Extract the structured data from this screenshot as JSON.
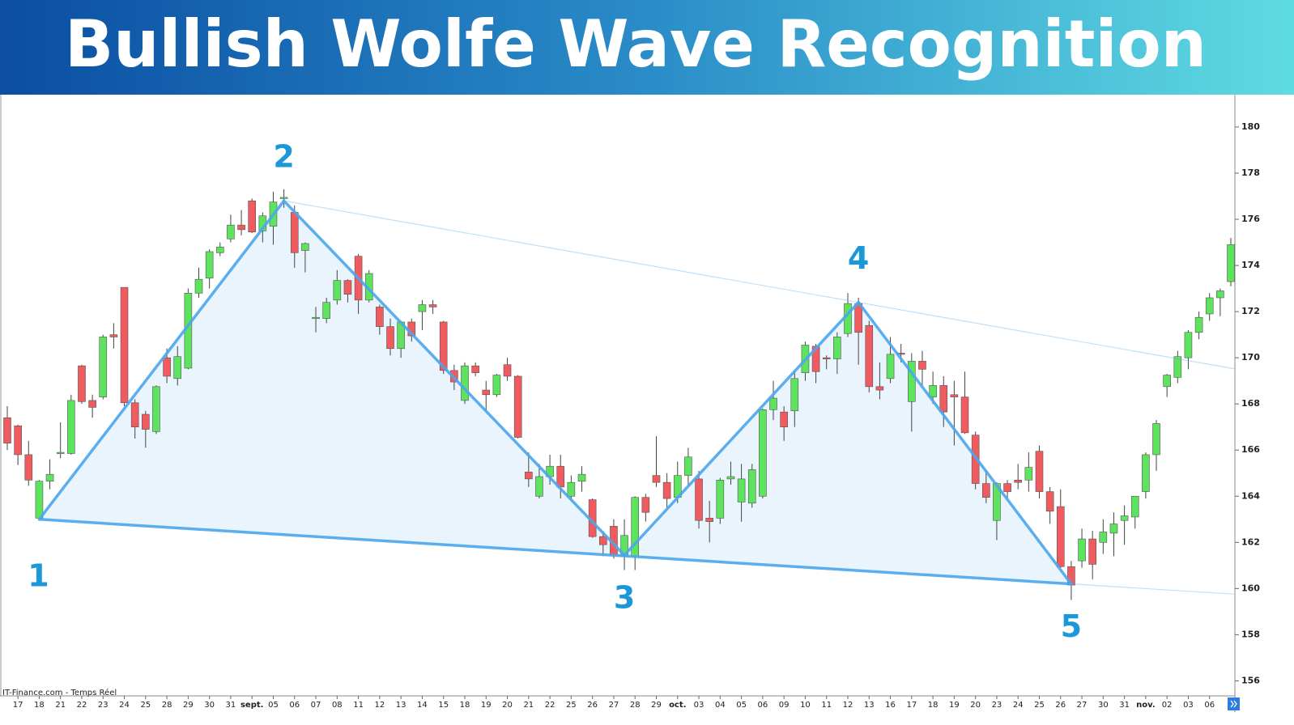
{
  "chart_data": {
    "type": "candlestick",
    "title": "Bullish Wolfe Wave Recognition",
    "source_label": "IT-Finance.com - Temps Réel",
    "categories": [
      null,
      "17",
      null,
      "18",
      null,
      "21",
      null,
      "22",
      null,
      "23",
      null,
      "24",
      null,
      "25",
      null,
      "28",
      null,
      "29",
      null,
      "30",
      null,
      "31",
      null,
      "sept.",
      null,
      "05",
      null,
      "06",
      null,
      "07",
      null,
      "08",
      null,
      "11",
      null,
      "12",
      null,
      "13",
      null,
      "14",
      null,
      "15",
      null,
      "18",
      null,
      "19",
      null,
      "20",
      null,
      "21",
      null,
      "22",
      null,
      "25",
      null,
      "26",
      null,
      "27",
      null,
      "28",
      null,
      "29",
      null,
      "oct.",
      null,
      "03",
      null,
      "04",
      null,
      "05",
      null,
      "06",
      null,
      "09",
      null,
      "10",
      null,
      "11",
      null,
      "12",
      null,
      "13",
      null,
      "16",
      null,
      "17",
      null,
      "18",
      null,
      "19",
      null,
      "20",
      null,
      "23",
      null,
      "24",
      null,
      "25",
      null,
      "26",
      null,
      "27",
      null,
      "30",
      null,
      "31",
      null,
      "nov.",
      null,
      "02",
      null,
      "03",
      null,
      "06",
      null,
      null
    ],
    "open": [
      167.4,
      167.05,
      165.8,
      163.05,
      164.65,
      165.85,
      165.85,
      169.65,
      168.15,
      168.3,
      171.0,
      173.05,
      168.05,
      167.55,
      166.8,
      170.0,
      169.1,
      169.55,
      172.8,
      173.45,
      174.55,
      175.15,
      175.75,
      176.8,
      175.5,
      175.7,
      176.9,
      176.3,
      174.65,
      171.7,
      171.7,
      172.5,
      173.35,
      174.4,
      172.5,
      172.2,
      171.35,
      170.4,
      171.55,
      172.0,
      172.3,
      171.55,
      169.45,
      168.15,
      169.65,
      168.6,
      168.4,
      169.7,
      169.2,
      165.05,
      164.0,
      164.85,
      165.3,
      164.0,
      164.65,
      163.85,
      162.25,
      162.7,
      161.4,
      161.4,
      163.95,
      164.9,
      164.6,
      163.95,
      164.9,
      164.75,
      163.05,
      163.05,
      164.75,
      163.75,
      163.7,
      164.0,
      167.75,
      167.65,
      167.7,
      169.35,
      170.5,
      170.0,
      169.95,
      171.05,
      172.35,
      171.4,
      168.75,
      169.1,
      170.2,
      168.1,
      169.85,
      168.3,
      168.8,
      168.4,
      168.3,
      166.65,
      164.55,
      162.95,
      164.55,
      164.7,
      164.7,
      165.95,
      164.2,
      163.55,
      160.95,
      161.2,
      162.15,
      162.0,
      162.4,
      162.95,
      163.1,
      164.2,
      165.8,
      168.75,
      169.15,
      170.0,
      171.1,
      171.9,
      172.6,
      173.3
    ],
    "high": [
      167.9,
      167.1,
      166.4,
      164.7,
      165.6,
      167.2,
      168.4,
      169.7,
      168.4,
      171.0,
      171.5,
      173.05,
      168.2,
      167.7,
      168.8,
      170.4,
      170.5,
      173.0,
      173.9,
      174.7,
      175.0,
      176.2,
      176.4,
      176.9,
      176.3,
      177.2,
      177.3,
      176.6,
      175.0,
      172.2,
      172.6,
      173.8,
      173.4,
      174.5,
      173.8,
      172.3,
      171.7,
      171.6,
      171.7,
      172.5,
      172.5,
      171.6,
      169.7,
      169.8,
      169.8,
      169.0,
      169.3,
      170.0,
      169.25,
      165.9,
      165.4,
      165.8,
      165.8,
      164.9,
      165.3,
      163.9,
      162.5,
      163.0,
      163.0,
      164.0,
      164.1,
      166.6,
      165.0,
      165.5,
      166.1,
      165.1,
      163.8,
      164.8,
      165.5,
      165.4,
      165.4,
      167.8,
      169.0,
      167.9,
      169.4,
      170.7,
      170.6,
      170.1,
      171.1,
      172.8,
      172.6,
      171.6,
      169.8,
      170.9,
      170.6,
      170.2,
      170.3,
      169.4,
      169.2,
      169.0,
      169.4,
      166.8,
      165.1,
      164.6,
      164.7,
      165.4,
      165.9,
      166.2,
      164.4,
      164.3,
      161.2,
      162.6,
      162.5,
      163.0,
      163.3,
      163.6,
      164.0,
      165.9,
      167.3,
      169.3,
      170.3,
      171.2,
      172.0,
      172.8,
      173.0,
      175.2
    ],
    "low": [
      166.0,
      165.35,
      164.45,
      163.0,
      164.3,
      165.65,
      165.8,
      168.0,
      167.4,
      168.2,
      170.4,
      167.9,
      166.5,
      166.1,
      166.7,
      168.9,
      168.8,
      169.5,
      172.6,
      173.0,
      174.4,
      175.0,
      175.3,
      175.4,
      175.0,
      174.9,
      176.5,
      173.9,
      173.7,
      171.1,
      171.5,
      172.3,
      172.4,
      171.9,
      172.4,
      171.0,
      170.1,
      170.0,
      170.7,
      171.2,
      171.9,
      169.3,
      168.6,
      168.0,
      169.2,
      167.7,
      168.3,
      169.0,
      166.5,
      164.4,
      163.9,
      164.5,
      163.9,
      163.8,
      164.2,
      162.2,
      161.4,
      161.3,
      160.8,
      160.8,
      162.9,
      164.4,
      163.5,
      163.7,
      164.5,
      162.6,
      162.0,
      162.8,
      164.5,
      162.9,
      163.5,
      163.9,
      167.3,
      166.4,
      167.0,
      169.0,
      168.9,
      169.5,
      169.3,
      170.9,
      169.7,
      168.5,
      168.2,
      168.9,
      169.8,
      166.8,
      168.8,
      168.0,
      167.0,
      166.2,
      166.7,
      164.3,
      163.7,
      162.1,
      163.9,
      164.3,
      164.2,
      163.9,
      162.8,
      160.9,
      159.5,
      160.9,
      160.4,
      161.5,
      161.4,
      161.9,
      162.6,
      163.9,
      165.1,
      168.3,
      168.9,
      169.5,
      170.8,
      171.6,
      171.8,
      173.1
    ],
    "close": [
      166.3,
      165.8,
      164.7,
      164.65,
      164.95,
      165.9,
      168.15,
      168.1,
      167.85,
      170.9,
      170.9,
      168.05,
      167.0,
      166.9,
      168.75,
      169.2,
      170.05,
      172.8,
      173.4,
      174.6,
      174.8,
      175.75,
      175.55,
      175.45,
      176.15,
      176.75,
      176.95,
      174.55,
      174.95,
      171.75,
      172.4,
      173.35,
      172.75,
      172.5,
      173.65,
      171.35,
      170.4,
      171.55,
      170.95,
      172.3,
      172.2,
      169.45,
      168.95,
      169.65,
      169.35,
      168.4,
      169.25,
      169.2,
      166.55,
      164.75,
      164.85,
      165.3,
      164.4,
      164.6,
      164.95,
      162.25,
      161.9,
      161.45,
      162.3,
      163.95,
      163.3,
      164.6,
      163.9,
      164.9,
      165.7,
      162.95,
      162.9,
      164.7,
      164.85,
      164.75,
      165.15,
      167.75,
      168.25,
      167.0,
      169.1,
      170.55,
      169.4,
      169.95,
      170.9,
      172.35,
      171.1,
      168.75,
      168.6,
      170.15,
      170.15,
      169.85,
      169.5,
      168.8,
      167.65,
      168.3,
      166.75,
      164.55,
      163.95,
      164.55,
      164.2,
      164.6,
      165.25,
      164.2,
      163.35,
      160.95,
      160.15,
      162.15,
      161.05,
      162.45,
      162.8,
      163.15,
      164.0,
      165.8,
      167.15,
      169.25,
      170.05,
      171.1,
      171.75,
      172.6,
      172.9,
      174.9
    ],
    "up_color": "#5ee35e",
    "down_color": "#ef5b5f",
    "wolfe_points": [
      {
        "label": "1",
        "candle": 3,
        "price": 163.0
      },
      {
        "label": "2",
        "candle": 26,
        "price": 176.8
      },
      {
        "label": "3",
        "candle": 58,
        "price": 161.45
      },
      {
        "label": "4",
        "candle": 80,
        "price": 172.4
      },
      {
        "label": "5",
        "candle": 100,
        "price": 160.2
      }
    ],
    "wolfe_color": "#4aa6ec",
    "label_color": "#1a98d8",
    "ylim": [
      155.7,
      181.4
    ],
    "yticks": [
      156,
      158,
      160,
      162,
      164,
      166,
      168,
      170,
      172,
      174,
      176,
      178,
      180
    ],
    "y_axis_side": "right"
  }
}
